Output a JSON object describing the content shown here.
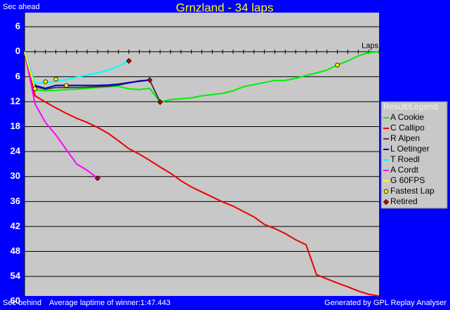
{
  "chart_data": {
    "type": "line",
    "title": "Grnzland - 34 laps",
    "y_label_top": "Sec ahead",
    "y_label_bottom": "Sec behind",
    "x_label": "Laps",
    "footer_left": "Average laptime of winner:1:47.443",
    "footer_right": "Generated by GPL Replay Analyser",
    "legend_title": "Result/Legend",
    "legend": "right",
    "grid": true,
    "y_inverted": true,
    "xlim": [
      0,
      34
    ],
    "xticks": [
      0,
      1,
      2,
      3,
      4,
      5,
      6,
      7,
      8,
      9,
      10,
      11,
      12,
      13,
      14,
      15,
      16,
      17,
      18,
      19,
      20,
      21,
      22,
      23,
      24,
      25,
      26,
      27,
      28,
      29,
      30,
      31,
      32,
      33,
      34
    ],
    "ylim": [
      -9.4,
      58.7
    ],
    "yticks": [
      {
        "value": -6,
        "label": "6"
      },
      0,
      6,
      12,
      18,
      24,
      30,
      36,
      42,
      48,
      54,
      60
    ],
    "x": [
      0,
      1,
      2,
      3,
      4,
      5,
      6,
      7,
      8,
      9,
      10,
      11,
      12,
      13,
      14,
      15,
      16,
      17,
      18,
      19,
      20,
      21,
      22,
      23,
      24,
      25,
      26,
      27,
      28,
      29,
      30,
      31,
      32,
      33,
      34
    ],
    "series": [
      {
        "name": "A Cookie",
        "color": "#00ee00",
        "values": [
          0,
          9.1,
          9.4,
          9.3,
          9.1,
          9.0,
          8.8,
          8.6,
          8.4,
          8.3,
          8.9,
          9.1,
          8.8,
          12.1,
          11.5,
          11.3,
          11.1,
          10.6,
          10.3,
          10.0,
          9.4,
          8.4,
          7.9,
          7.4,
          6.9,
          6.9,
          6.4,
          5.7,
          5.1,
          4.4,
          3.2,
          2.2,
          1.0,
          0.2,
          0
        ]
      },
      {
        "name": "C Callipo",
        "color": "#ee0000",
        "values": [
          0,
          10.6,
          12.1,
          13.5,
          14.8,
          16.0,
          17.0,
          18.2,
          19.6,
          21.4,
          23.3,
          24.6,
          26.1,
          27.7,
          29.2,
          31.0,
          32.5,
          33.7,
          34.9,
          36.1,
          37.1,
          38.4,
          39.7,
          41.5,
          42.5,
          43.7,
          45.2,
          46.4,
          53.6,
          54.6,
          55.6,
          56.5,
          57.5,
          58.3,
          58.7
        ]
      },
      {
        "name": "R Alpen",
        "color": "#404040",
        "values": [
          0,
          8.4,
          9.0,
          8.6,
          8.6,
          8.6,
          8.5,
          8.4,
          8.3,
          8.0,
          7.5,
          7.0,
          6.8,
          12.1,
          null,
          null,
          null,
          null,
          null,
          null,
          null,
          null,
          null,
          null,
          null,
          null,
          null,
          null,
          null,
          null,
          null,
          null,
          null,
          null,
          null
        ]
      },
      {
        "name": "L Oetinger",
        "color": "#0000c0",
        "values": [
          0,
          8.1,
          8.8,
          8.1,
          8.1,
          8.1,
          8.1,
          8.1,
          8.0,
          7.8,
          7.4,
          7.1,
          6.8,
          null,
          null,
          null,
          null,
          null,
          null,
          null,
          null,
          null,
          null,
          null,
          null,
          null,
          null,
          null,
          null,
          null,
          null,
          null,
          null,
          null,
          null
        ]
      },
      {
        "name": "T Roedl",
        "color": "#00ffff",
        "values": [
          0,
          7.6,
          7.4,
          7.1,
          6.7,
          6.1,
          5.6,
          5.1,
          4.4,
          3.5,
          2.2,
          null,
          null,
          null,
          null,
          null,
          null,
          null,
          null,
          null,
          null,
          null,
          null,
          null,
          null,
          null,
          null,
          null,
          null,
          null,
          null,
          null,
          null,
          null,
          null
        ]
      },
      {
        "name": "A Cordt",
        "color": "#ff00ff",
        "values": [
          0,
          12.5,
          17.0,
          20.0,
          23.5,
          27.0,
          28.5,
          30.4,
          null,
          null,
          null,
          null,
          null,
          null,
          null,
          null,
          null,
          null,
          null,
          null,
          null,
          null,
          null,
          null,
          null,
          null,
          null,
          null,
          null,
          null,
          null,
          null,
          null,
          null,
          null
        ]
      },
      {
        "name": "G 60FPS",
        "color": "#ffff00",
        "values": [
          0,
          8.9,
          null,
          null,
          null,
          null,
          null,
          null,
          null,
          null,
          null,
          null,
          null,
          null,
          null,
          null,
          null,
          null,
          null,
          null,
          null,
          null,
          null,
          null,
          null,
          null,
          null,
          null,
          null,
          null,
          null,
          null,
          null,
          null,
          null
        ]
      }
    ],
    "markers": [
      {
        "name": "Fastest Lap",
        "color": "#ffff00",
        "shape": "circle",
        "x": [
          1,
          2,
          3,
          4,
          30
        ],
        "values": [
          8.9,
          7.2,
          6.6,
          8.1,
          3.2
        ]
      },
      {
        "name": "Retired",
        "color": "#cc0000",
        "shape": "diamond",
        "x": [
          7,
          10,
          12,
          13
        ],
        "values": [
          30.4,
          2.2,
          6.8,
          12.1
        ]
      }
    ]
  }
}
